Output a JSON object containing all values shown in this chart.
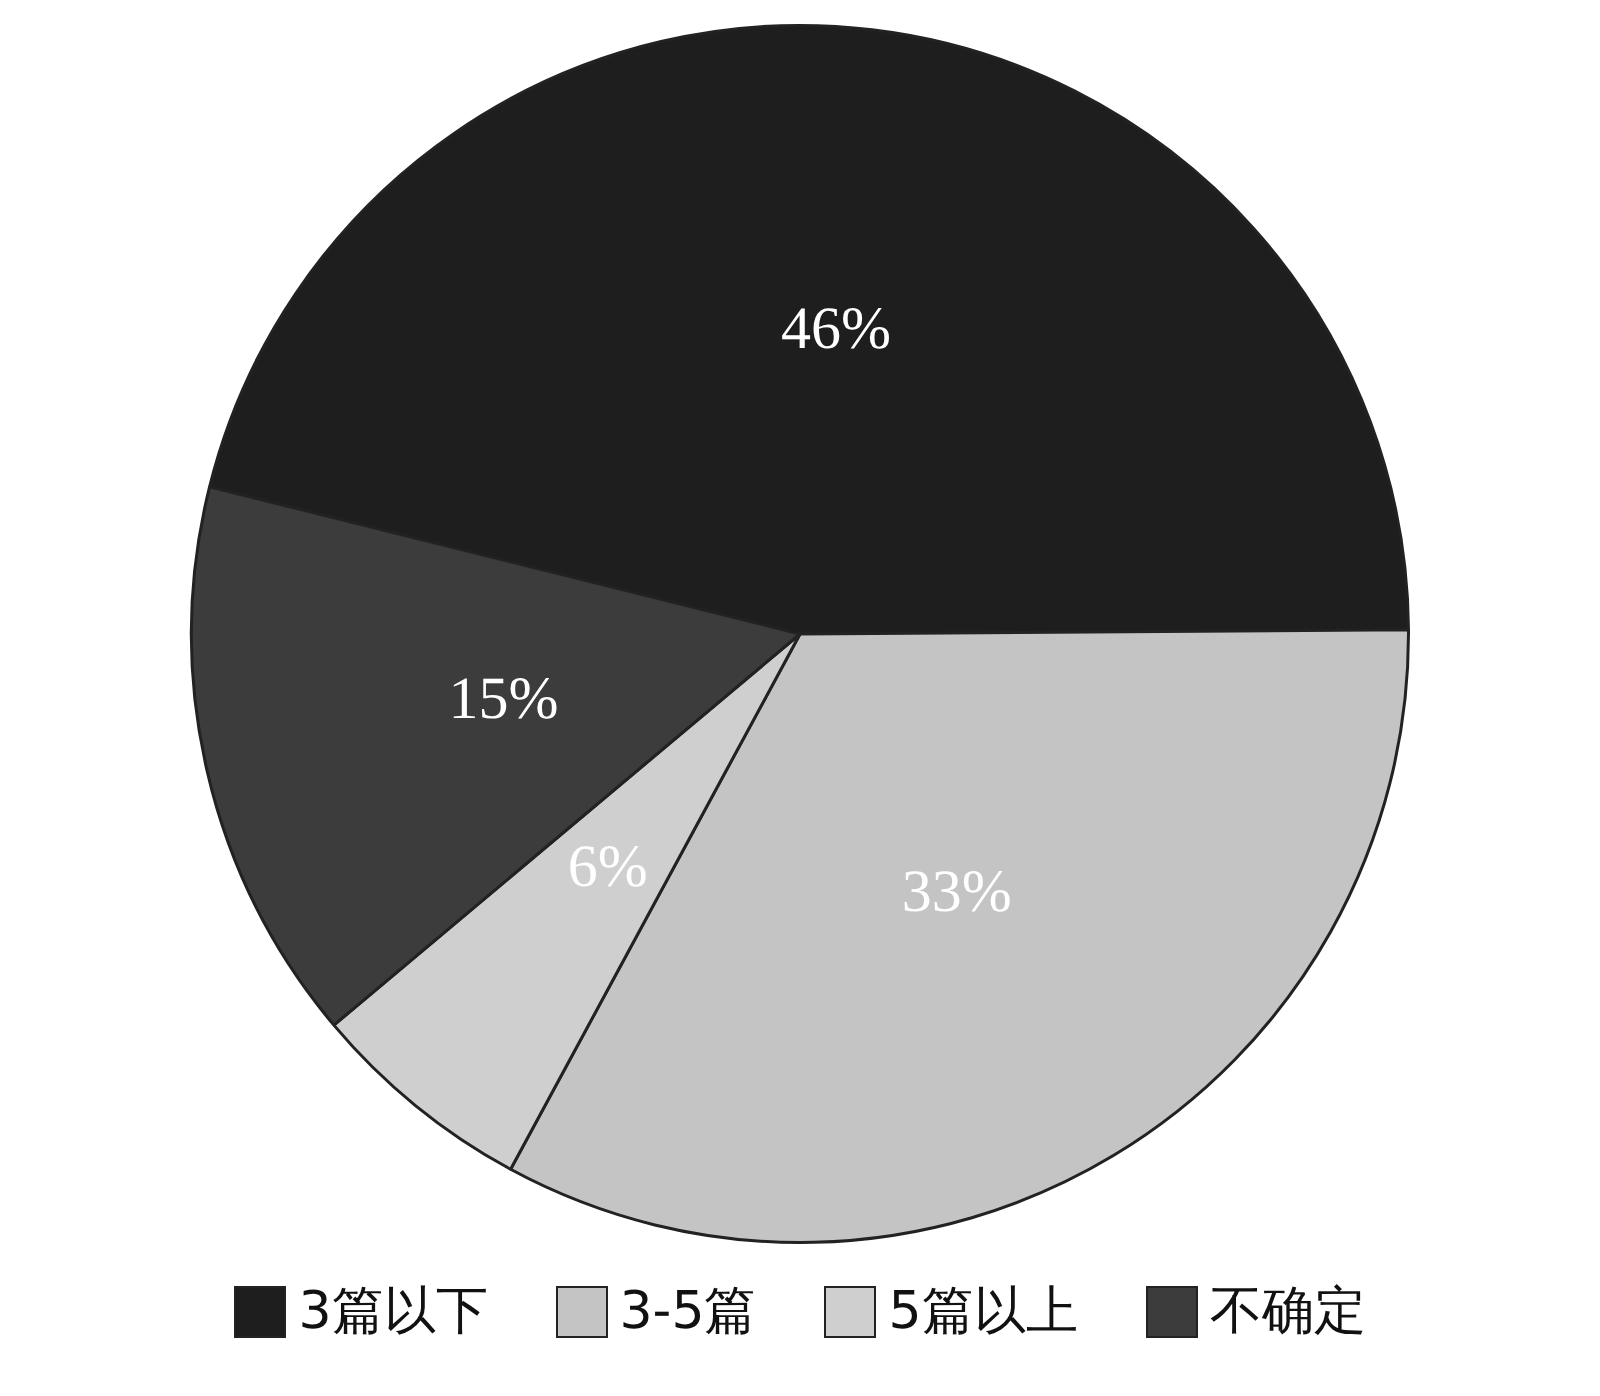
{
  "chart_data": {
    "type": "pie",
    "categories": [
      "3篇以下",
      "3-5篇",
      "5篇以上",
      "不确定"
    ],
    "values": [
      46,
      33,
      6,
      15
    ],
    "colors": [
      "#1e1e1e",
      "#c4c4c4",
      "#cfcfcf",
      "#3c3c3c"
    ],
    "value_labels": [
      "46%",
      "33%",
      "6%",
      "15%"
    ],
    "legend": "bottom"
  }
}
